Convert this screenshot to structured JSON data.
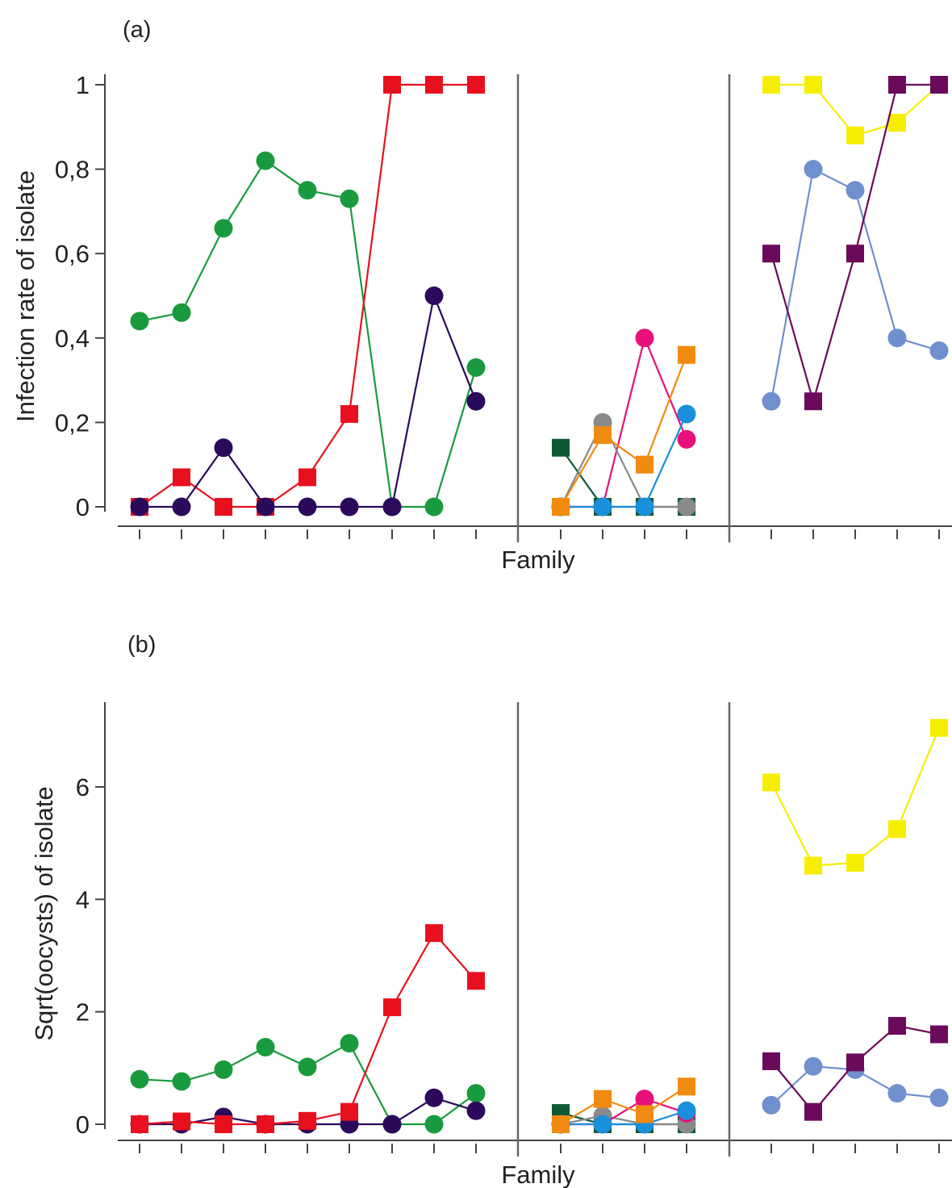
{
  "chart_data": [
    {
      "type": "line",
      "panel_label": "(a)",
      "xlabel": "Family",
      "ylabel": "Infection rate of isolate",
      "ylim": [
        0,
        1
      ],
      "yticks": [
        0,
        0.2,
        0.4,
        0.6,
        0.8,
        1
      ],
      "ytick_labels": [
        "0",
        "0,2",
        "0,4",
        "0,6",
        "0,8",
        "1"
      ],
      "grid": false,
      "groups": [
        {
          "families": 9,
          "series": [
            {
              "marker": "circle",
              "color": "#1a9a3e",
              "values": [
                0.44,
                0.46,
                0.66,
                0.82,
                0.75,
                0.73,
                0,
                0,
                0.33
              ]
            },
            {
              "marker": "square",
              "color": "#e8101e",
              "values": [
                0,
                0.07,
                0,
                0,
                0.07,
                0.22,
                1,
                1,
                1
              ]
            },
            {
              "marker": "circle",
              "color": "#2b0a5c",
              "values": [
                0,
                0,
                0.14,
                0,
                0,
                0,
                0,
                0.5,
                0.25
              ]
            }
          ]
        },
        {
          "families": 4,
          "series": [
            {
              "marker": "square",
              "color": "#0e5a33",
              "values": [
                0.14,
                0,
                0,
                0
              ]
            },
            {
              "marker": "circle",
              "color": "#e8107a",
              "values": [
                0,
                0,
                0.4,
                0.16
              ]
            },
            {
              "marker": "circle",
              "color": "#8a8a8a",
              "values": [
                0,
                0.2,
                0,
                0
              ]
            },
            {
              "marker": "circle",
              "color": "#1a8fdc",
              "values": [
                0,
                0,
                0,
                0.22
              ]
            },
            {
              "marker": "square",
              "color": "#f08a10",
              "values": [
                0,
                0.17,
                0.1,
                0.36
              ]
            }
          ]
        },
        {
          "families": 5,
          "series": [
            {
              "marker": "square",
              "color": "#f6ee00",
              "values": [
                1,
                1,
                0.88,
                0.91,
                1
              ]
            },
            {
              "marker": "circle",
              "color": "#6f8fcf",
              "values": [
                0.25,
                0.8,
                0.75,
                0.4,
                0.37
              ]
            },
            {
              "marker": "square",
              "color": "#6b0a5a",
              "values": [
                0.6,
                0.25,
                0.6,
                1,
                1
              ]
            }
          ]
        }
      ]
    },
    {
      "type": "line",
      "panel_label": "(b)",
      "xlabel": "Family",
      "ylabel": "Sqrt(oocysts) of isolate",
      "ylim": [
        0,
        7.4
      ],
      "yticks": [
        0,
        2,
        4,
        6
      ],
      "ytick_labels": [
        "0",
        "2",
        "4",
        "6"
      ],
      "grid": false,
      "groups": [
        {
          "families": 9,
          "series": [
            {
              "marker": "circle",
              "color": "#1a9a3e",
              "values": [
                0.8,
                0.76,
                0.97,
                1.37,
                1.02,
                1.44,
                0,
                0,
                0.55
              ]
            },
            {
              "marker": "circle",
              "color": "#2b0a5c",
              "values": [
                0,
                0,
                0.13,
                0,
                0,
                0,
                0,
                0.47,
                0.24
              ]
            },
            {
              "marker": "square",
              "color": "#e8101e",
              "values": [
                0,
                0.05,
                0,
                0,
                0.06,
                0.22,
                2.08,
                3.4,
                2.55
              ]
            }
          ]
        },
        {
          "families": 4,
          "series": [
            {
              "marker": "square",
              "color": "#0e5a33",
              "values": [
                0.2,
                0,
                0,
                0
              ]
            },
            {
              "marker": "circle",
              "color": "#8a8a8a",
              "values": [
                0,
                0.15,
                0,
                0
              ]
            },
            {
              "marker": "circle",
              "color": "#e8107a",
              "values": [
                0,
                0,
                0.45,
                0.2
              ]
            },
            {
              "marker": "circle",
              "color": "#1a8fdc",
              "values": [
                0,
                0,
                0,
                0.24
              ]
            },
            {
              "marker": "square",
              "color": "#f08a10",
              "values": [
                0,
                0.45,
                0.18,
                0.67
              ]
            }
          ]
        },
        {
          "families": 5,
          "series": [
            {
              "marker": "square",
              "color": "#f6ee00",
              "values": [
                6.08,
                4.6,
                4.65,
                5.25,
                7.05
              ]
            },
            {
              "marker": "circle",
              "color": "#6f8fcf",
              "values": [
                0.34,
                1.03,
                0.97,
                0.55,
                0.47
              ]
            },
            {
              "marker": "square",
              "color": "#6b0a5a",
              "values": [
                1.12,
                0.22,
                1.1,
                1.75,
                1.6
              ]
            }
          ]
        }
      ]
    }
  ]
}
